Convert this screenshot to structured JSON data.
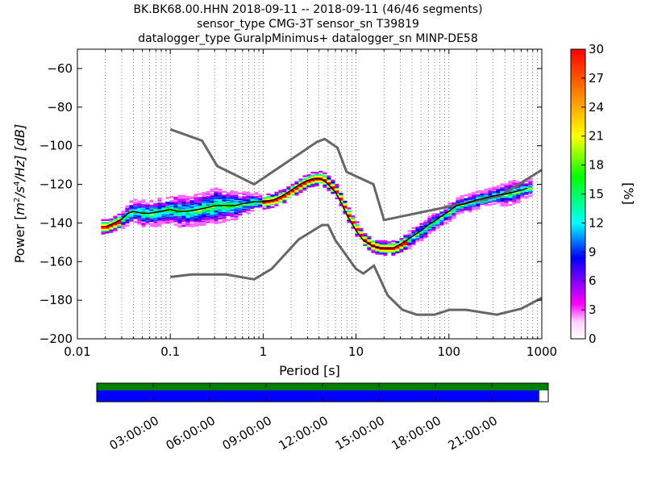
{
  "title_lines": [
    "BK.BK68.00.HHN   2018-09-11 -- 2018-09-11  (46/46 segments)",
    "sensor_type CMG-3T sensor_sn T39819",
    "datalogger_type GuralpMinimus+ datalogger_sn MINP-DE58"
  ],
  "chart_data": {
    "type": "heatmap",
    "xlabel": "Period [s]",
    "ylabel": "Power [m²/s⁴/Hz] [dB]",
    "ylabel_parts": {
      "pre": "Power [",
      "unit": "m",
      "exp1": "2",
      "mid": "/s",
      "exp2": "4",
      "post": "/Hz] [dB]"
    },
    "x_scale": "log",
    "xlim": [
      0.01,
      1000
    ],
    "ylim": [
      -200,
      -50
    ],
    "x_ticks": [
      0.01,
      0.1,
      1,
      10,
      100,
      1000
    ],
    "x_tick_labels": [
      "0.01",
      "0.1",
      "1",
      "10",
      "100",
      "1000"
    ],
    "y_ticks": [
      -200,
      -180,
      -160,
      -140,
      -120,
      -100,
      -80,
      -60
    ],
    "y_tick_labels": [
      "−200",
      "−180",
      "−160",
      "−140",
      "−120",
      "−100",
      "−80",
      "−60"
    ],
    "grid": "dotted vertical lines",
    "colorbar": {
      "label": "[%]",
      "range": [
        0,
        30
      ],
      "ticks": [
        0,
        3,
        6,
        9,
        12,
        15,
        18,
        21,
        24,
        27,
        30
      ],
      "tick_labels": [
        "0",
        "3",
        "6",
        "9",
        "12",
        "15",
        "18",
        "21",
        "24",
        "27",
        "30"
      ],
      "colormap": "pqlx"
    },
    "psd_mean_curve": {
      "periods": [
        0.02,
        0.025,
        0.03,
        0.035,
        0.04,
        0.05,
        0.06,
        0.08,
        0.1,
        0.12,
        0.15,
        0.2,
        0.25,
        0.3,
        0.4,
        0.5,
        0.6,
        0.8,
        1,
        1.3,
        1.6,
        2,
        2.5,
        3,
        3.5,
        4,
        4.5,
        5,
        6,
        7,
        8,
        10,
        12,
        15,
        18,
        20,
        25,
        30,
        35,
        40,
        50,
        60,
        70,
        80,
        100,
        120,
        150,
        200,
        250,
        300,
        400,
        500,
        600,
        700
      ],
      "power_db": [
        -142,
        -140,
        -138,
        -135,
        -134,
        -135,
        -135,
        -134,
        -133,
        -134,
        -134,
        -133,
        -132,
        -131,
        -131,
        -131,
        -130,
        -129,
        -129,
        -128,
        -126,
        -123,
        -120,
        -118,
        -117,
        -117,
        -118,
        -120,
        -124,
        -130,
        -136,
        -144,
        -149,
        -152,
        -153,
        -153,
        -153,
        -151,
        -149,
        -147,
        -144,
        -141,
        -139,
        -137,
        -134,
        -131,
        -130,
        -128,
        -127,
        -126,
        -125,
        -124,
        -123,
        -122
      ]
    },
    "psd_cloud": {
      "periods": [
        0.02,
        0.025,
        0.03,
        0.035,
        0.04,
        0.05,
        0.06,
        0.08,
        0.1,
        0.12,
        0.15,
        0.2,
        0.25,
        0.3,
        0.4,
        0.5,
        0.6,
        0.8,
        1,
        1.3,
        1.6,
        2,
        2.5,
        3,
        3.5,
        4,
        4.5,
        5,
        6,
        7,
        8,
        10,
        12,
        15,
        18,
        20,
        25,
        30,
        35,
        40,
        50,
        60,
        70,
        80,
        100,
        120,
        150,
        200,
        250,
        300,
        400,
        500,
        600,
        700
      ],
      "spread_db": [
        2,
        2,
        3,
        4,
        4,
        5,
        5,
        5,
        5,
        6,
        6,
        6,
        7,
        7,
        6,
        5,
        4,
        3,
        2,
        2,
        2,
        2,
        2,
        2,
        2,
        2,
        2,
        2,
        2,
        2,
        2,
        2,
        2,
        2,
        2,
        2,
        2,
        2,
        3,
        3,
        3,
        3,
        3,
        3,
        3,
        3,
        3,
        3,
        3,
        3,
        4,
        4,
        3,
        3
      ]
    },
    "nhnm": {
      "periods": [
        0.1,
        0.22,
        0.32,
        0.8,
        3.8,
        4.6,
        6.3,
        7.9,
        15.4,
        20,
        354.8,
        1000
      ],
      "power_db": [
        -91.5,
        -97.4,
        -110.5,
        -120,
        -98,
        -96.5,
        -101,
        -113.5,
        -120,
        -138.5,
        -126,
        -112.5
      ]
    },
    "nlnm": {
      "periods": [
        0.1,
        0.17,
        0.4,
        0.8,
        1.24,
        2.4,
        4.3,
        5,
        6,
        10,
        12,
        15.6,
        21.9,
        31.6,
        45,
        70,
        101,
        154,
        328,
        600,
        1000
      ],
      "power_db": [
        -168,
        -166.7,
        -166.7,
        -169.2,
        -163.7,
        -148.6,
        -141.1,
        -141.1,
        -149,
        -163.8,
        -166.2,
        -162.1,
        -177.5,
        -185,
        -187.5,
        -187.5,
        -185,
        -185,
        -187.5,
        -184.4,
        -178.8
      ]
    }
  },
  "time_bar": {
    "tick_labels": [
      "03:00:00",
      "06:00:00",
      "09:00:00",
      "12:00:00",
      "15:00:00",
      "18:00:00",
      "21:00:00"
    ],
    "tick_hours": [
      3,
      6,
      9,
      12,
      15,
      18,
      21
    ],
    "span_hours": [
      0,
      24
    ],
    "data_coverage": [
      0,
      0.98
    ],
    "colors": {
      "coverage": "#008000",
      "used": "#0000ff",
      "axis": "#000000"
    }
  },
  "colors": {
    "mean_curve": "#000000",
    "noise_models": "#666666",
    "background": "#ffffff",
    "colormap_stops": [
      "#ffffff",
      "#ff00ff",
      "#0000ff",
      "#00ffff",
      "#00ff00",
      "#ffff00",
      "#ff7f00",
      "#ff0000"
    ]
  }
}
